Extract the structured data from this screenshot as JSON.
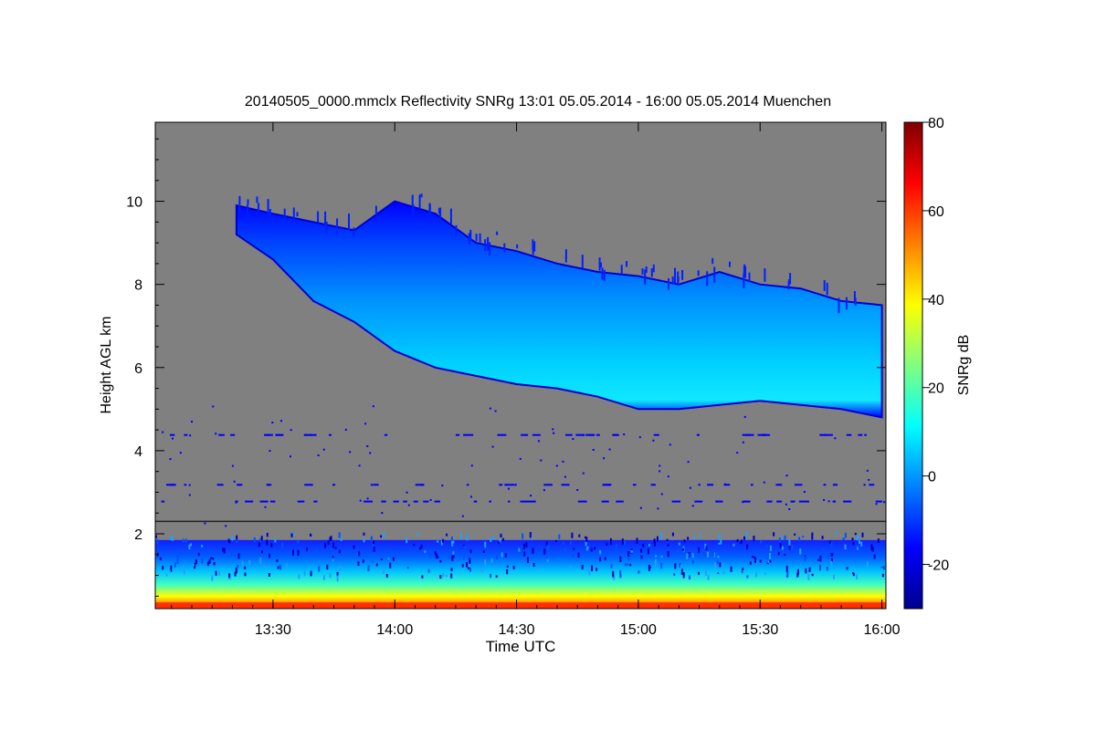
{
  "chart_data": {
    "type": "heatmap",
    "title": "20140505_0000.mmclx Reflectivity SNRg   13:01 05.05.2014 - 16:00 05.05.2014 Muenchen",
    "xlabel": "Time UTC",
    "ylabel": "Height AGL km",
    "x_ticks": [
      "13:30",
      "14:00",
      "14:30",
      "15:00",
      "15:30",
      "16:00"
    ],
    "x_tick_minutes": [
      810,
      840,
      870,
      900,
      930,
      960
    ],
    "xlim_minutes": [
      781,
      961
    ],
    "y_ticks": [
      2,
      4,
      6,
      8,
      10
    ],
    "ylim": [
      0.2,
      11.9
    ],
    "background_color": "#808080",
    "colorbar": {
      "label": "SNRg dB",
      "ticks": [
        80,
        60,
        40,
        20,
        0,
        -20
      ],
      "range": [
        -30,
        80
      ],
      "colors": [
        "#00008f",
        "#0000ff",
        "#0080ff",
        "#00ffff",
        "#80ff80",
        "#ffff00",
        "#ff8000",
        "#ff0000",
        "#800000"
      ]
    },
    "cloud_layer": {
      "time_minutes": [
        801,
        810,
        820,
        830,
        840,
        850,
        860,
        870,
        880,
        890,
        900,
        910,
        920,
        930,
        940,
        950,
        960
      ],
      "top_km": [
        9.9,
        9.7,
        9.5,
        9.3,
        10.0,
        9.7,
        9.0,
        8.8,
        8.5,
        8.3,
        8.2,
        8.0,
        8.3,
        8.0,
        7.9,
        7.6,
        7.5
      ],
      "base_km": [
        9.2,
        8.6,
        7.6,
        7.1,
        6.4,
        6.0,
        5.8,
        5.6,
        5.5,
        5.3,
        5.0,
        5.0,
        5.1,
        5.2,
        5.1,
        5.0,
        4.8
      ]
    },
    "boundary_layer_top_km": 2.3,
    "near_surface_max_dB": 60
  }
}
